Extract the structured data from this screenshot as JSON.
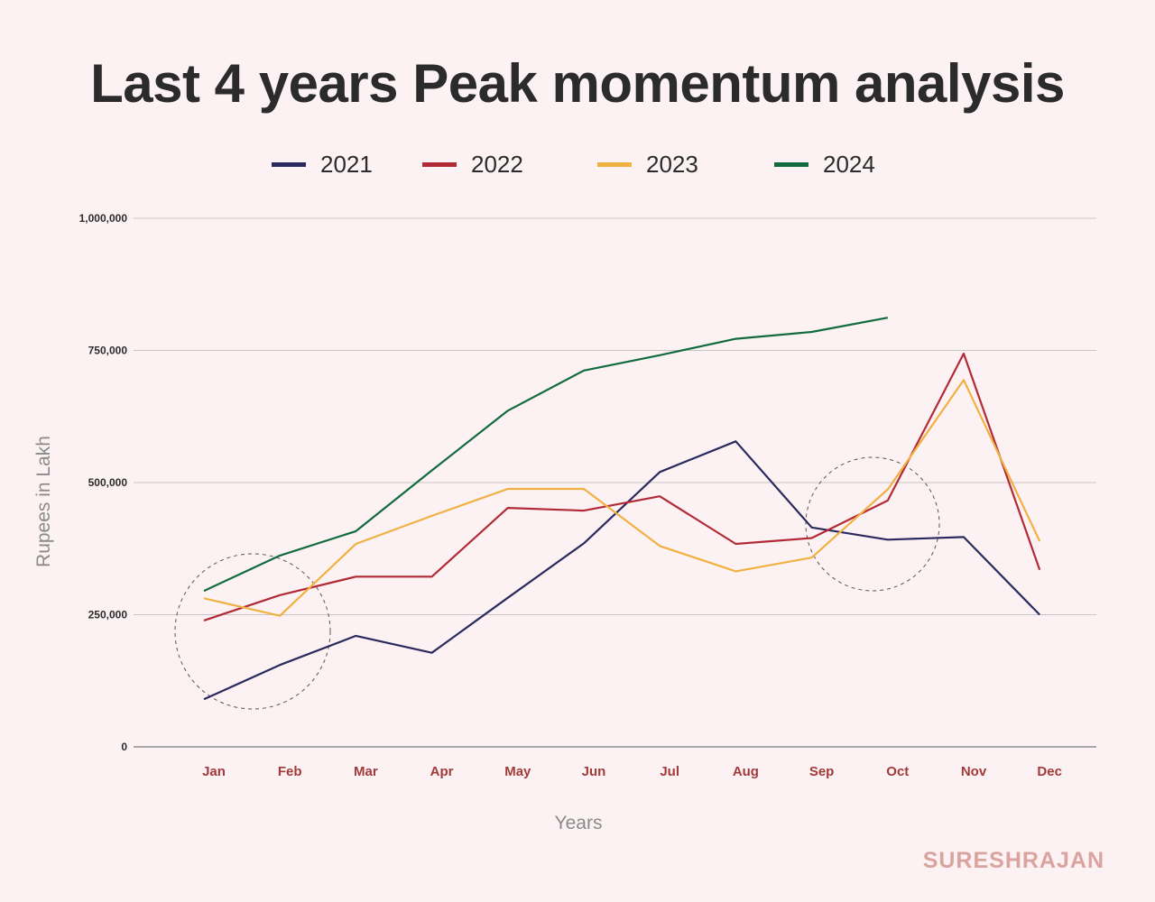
{
  "chart_data": {
    "type": "line",
    "title": "Last 4 years Peak momentum analysis",
    "xlabel": "Years",
    "ylabel": "Rupees in Lakh",
    "categories": [
      "Jan",
      "Feb",
      "Mar",
      "Apr",
      "May",
      "Jun",
      "Jul",
      "Aug",
      "Sep",
      "Oct",
      "Nov",
      "Dec"
    ],
    "yticks": [
      0,
      250000,
      500000,
      750000,
      1000000
    ],
    "ytick_labels": [
      "0",
      "250,000",
      "500,000",
      "750,000",
      "1,000,000"
    ],
    "ylim": [
      0,
      1000000
    ],
    "grid": true,
    "legend_position": "top",
    "series": [
      {
        "name": "2021",
        "color": "#2a2a5e",
        "values": [
          90000,
          155000,
          210000,
          178000,
          282000,
          385000,
          520000,
          578000,
          415000,
          392000,
          397000,
          250000
        ]
      },
      {
        "name": "2022",
        "color": "#b22a35",
        "values": [
          239000,
          287000,
          322000,
          322000,
          452000,
          447000,
          474000,
          384000,
          395000,
          466000,
          744000,
          335000
        ]
      },
      {
        "name": "2023",
        "color": "#f1b142",
        "values": [
          281000,
          248000,
          384000,
          437000,
          488000,
          488000,
          380000,
          332000,
          358000,
          487000,
          694000,
          389000
        ]
      },
      {
        "name": "2024",
        "color": "#116b3e",
        "values": [
          295000,
          362000,
          408000,
          523000,
          636000,
          712000,
          741000,
          772000,
          785000,
          812000,
          null,
          null
        ]
      }
    ],
    "annotations": [
      {
        "shape": "dashed-circle",
        "near": "Jan-Feb"
      },
      {
        "shape": "dashed-circle",
        "near": "Sep-Oct"
      }
    ]
  },
  "watermark": "SURESHRAJAN"
}
